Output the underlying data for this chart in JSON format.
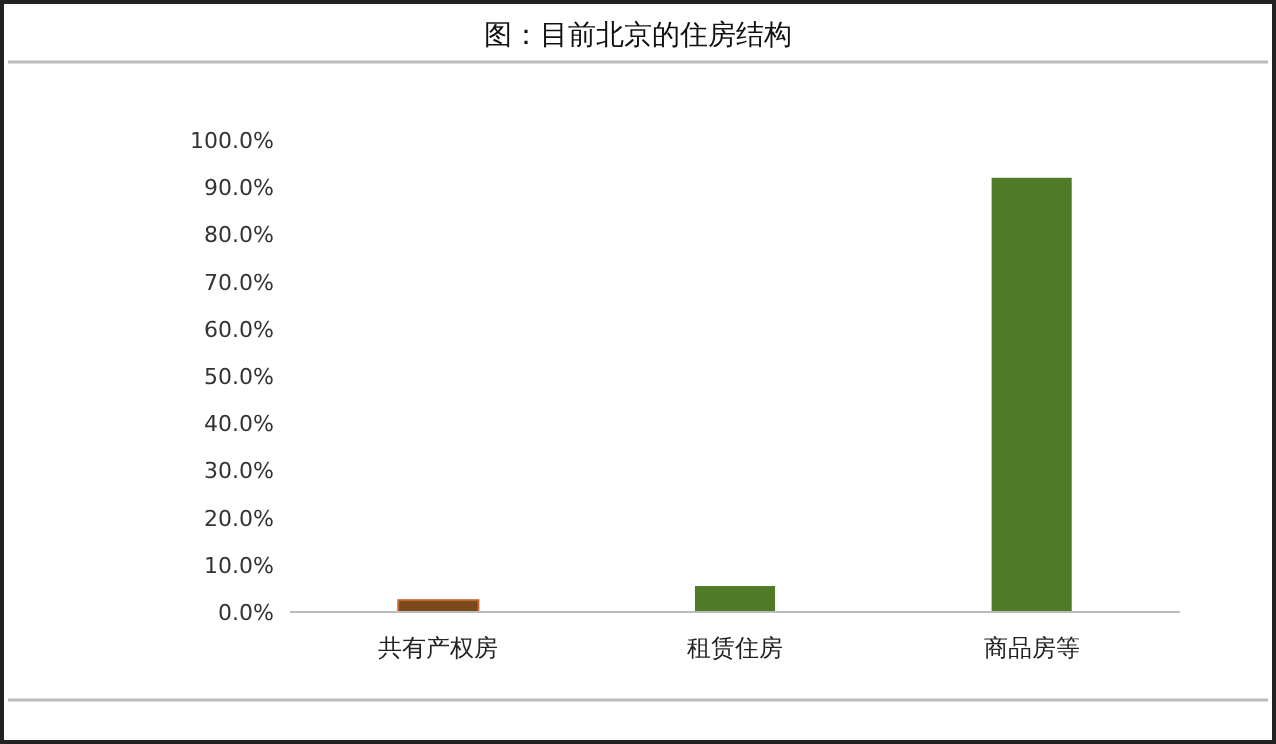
{
  "chart_data": {
    "type": "bar",
    "title": "图：目前北京的住房结构",
    "categories": [
      "共有产权房",
      "租赁住房",
      "商品房等"
    ],
    "values": [
      2.5,
      5.5,
      92
    ],
    "colors": [
      "#7a4a1c",
      "#4f7a28",
      "#4f7a28"
    ],
    "ylim": [
      0,
      100
    ],
    "yticks": [
      {
        "value": 0,
        "label": "0.0%"
      },
      {
        "value": 10,
        "label": "10.0%"
      },
      {
        "value": 20,
        "label": "20.0%"
      },
      {
        "value": 30,
        "label": "30.0%"
      },
      {
        "value": 40,
        "label": "40.0%"
      },
      {
        "value": 50,
        "label": "50.0%"
      },
      {
        "value": 60,
        "label": "60.0%"
      },
      {
        "value": 70,
        "label": "70.0%"
      },
      {
        "value": 80,
        "label": "80.0%"
      },
      {
        "value": 90,
        "label": "90.0%"
      },
      {
        "value": 100,
        "label": "100.0%"
      }
    ],
    "grid": false
  }
}
